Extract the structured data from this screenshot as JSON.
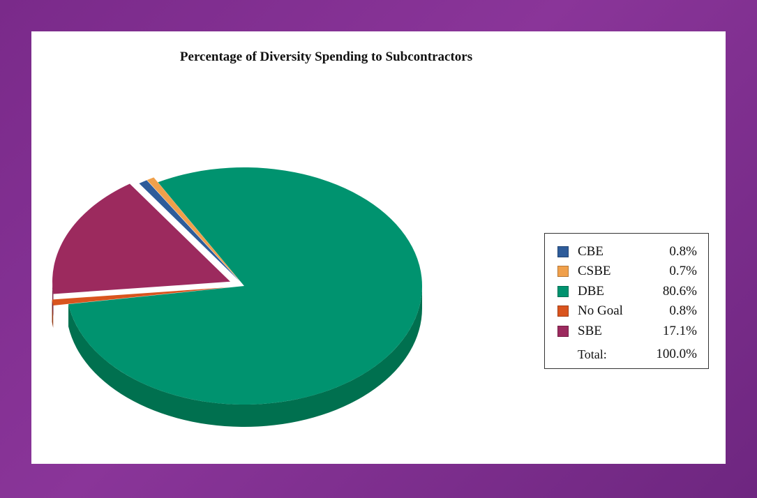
{
  "chart_data": {
    "type": "pie",
    "title": "Percentage of Diversity Spending to Subcontractors",
    "slices": [
      {
        "label": "CBE",
        "value": 0.8,
        "value_text": "0.8%",
        "color": "#2e5c9a",
        "side_color": "#1f3f6b"
      },
      {
        "label": "CSBE",
        "value": 0.7,
        "value_text": "0.7%",
        "color": "#f0a04b",
        "side_color": "#b8733a"
      },
      {
        "label": "DBE",
        "value": 80.6,
        "value_text": "80.6%",
        "color": "#00936f",
        "side_color": "#00704f"
      },
      {
        "label": "No Goal",
        "value": 0.8,
        "value_text": "0.8%",
        "color": "#d9541e",
        "side_color": "#933812"
      },
      {
        "label": "SBE",
        "value": 17.1,
        "value_text": "17.1%",
        "color": "#9c2a5e",
        "side_color": "#6f1d43"
      }
    ],
    "total_label": "Total:",
    "total_value": "100.0%",
    "legend_position": "right"
  },
  "colors": {
    "background": "#7a2a8a",
    "panel": "#ffffff"
  }
}
